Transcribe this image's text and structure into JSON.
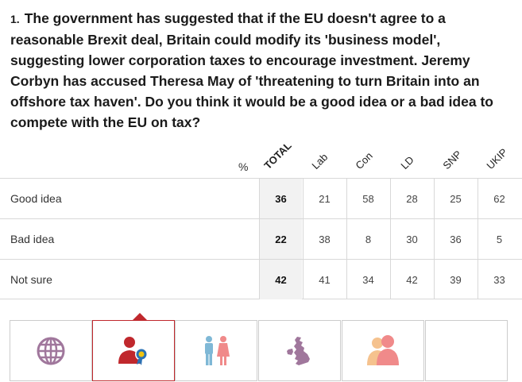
{
  "question": {
    "number": "1.",
    "text": "The government has suggested that if the EU doesn't agree to a reasonable Brexit deal, Britain could modify its 'business model', suggesting lower corporation taxes to encourage investment. Jeremy Corbyn has accused Theresa May of 'threatening to turn Britain into an offshore tax haven'. Do you think it would be a good idea or a bad idea to compete with the EU on tax?"
  },
  "chart_data": {
    "type": "table",
    "unit_label": "%",
    "columns": [
      "TOTAL",
      "Lab",
      "Con",
      "LD",
      "SNP",
      "UKIP"
    ],
    "rows": [
      {
        "label": "Good idea",
        "values": [
          "36",
          "21",
          "58",
          "28",
          "25",
          "62"
        ]
      },
      {
        "label": "Bad idea",
        "values": [
          "22",
          "38",
          "8",
          "30",
          "36",
          "5"
        ]
      },
      {
        "label": "Not sure",
        "values": [
          "42",
          "41",
          "34",
          "42",
          "39",
          "33"
        ]
      }
    ]
  },
  "tabs": [
    {
      "icon": "globe-icon",
      "active": false
    },
    {
      "icon": "person-award-icon",
      "active": true
    },
    {
      "icon": "male-female-icon",
      "active": false
    },
    {
      "icon": "uk-map-icon",
      "active": false
    },
    {
      "icon": "people-age-icon",
      "active": false
    },
    {
      "icon": "",
      "active": false
    }
  ],
  "colors": {
    "accent": "#c0282d",
    "globe": "#a0779c",
    "male": "#7fb8d6",
    "female": "#f08a8a",
    "map": "#a0779c",
    "age": "#f3a98a"
  }
}
